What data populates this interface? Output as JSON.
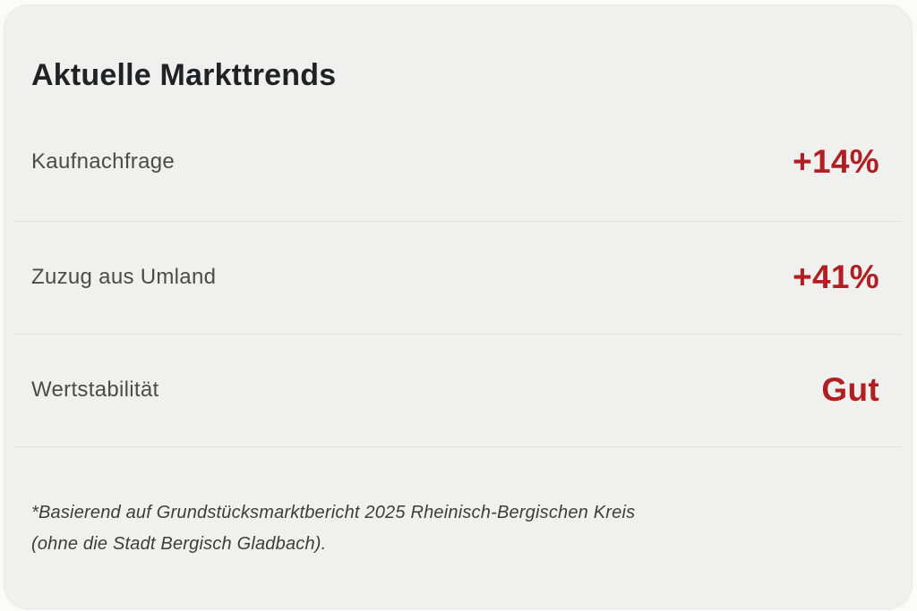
{
  "card": {
    "title": "Aktuelle Markttrends",
    "rows": [
      {
        "label": "Kaufnachfrage",
        "value": "+14%"
      },
      {
        "label": "Zuzug aus Umland",
        "value": "+41%"
      },
      {
        "label": "Wertstabilität",
        "value": "Gut"
      }
    ],
    "footnote_line1": "*Basierend auf Grundstücksmarktbericht 2025 Rheinisch-Bergischen Kreis",
    "footnote_line2": "(ohne die Stadt Bergisch Gladbach).",
    "colors": {
      "accent_red": "#b01f22",
      "card_background": "#f0f0ee",
      "divider": "#e2e2e0"
    }
  }
}
